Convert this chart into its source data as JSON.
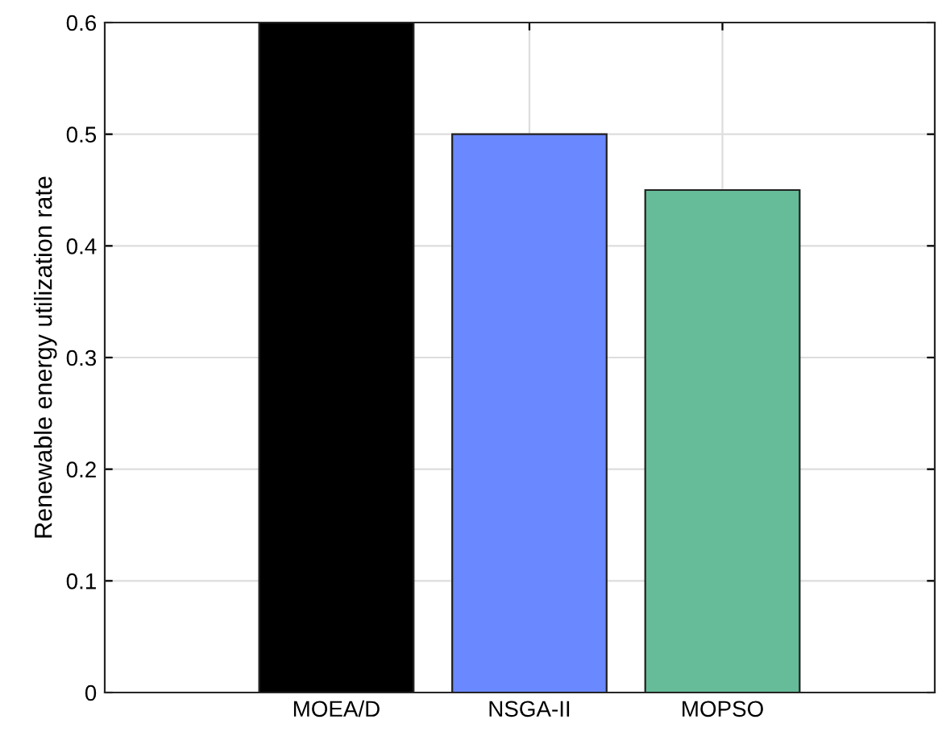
{
  "chart_data": {
    "type": "bar",
    "ylabel": "Renewable energy utilization rate",
    "categories": [
      "MOEA/D",
      "NSGA-II",
      "MOPSO"
    ],
    "values": [
      0.6,
      0.5,
      0.45
    ],
    "colors": [
      "#000000",
      "#6a88ff",
      "#66bb99"
    ],
    "ylim": [
      0,
      0.6
    ],
    "yticks": [
      0,
      0.1,
      0.2,
      0.3,
      0.4,
      0.5,
      0.6
    ],
    "grid": true
  }
}
